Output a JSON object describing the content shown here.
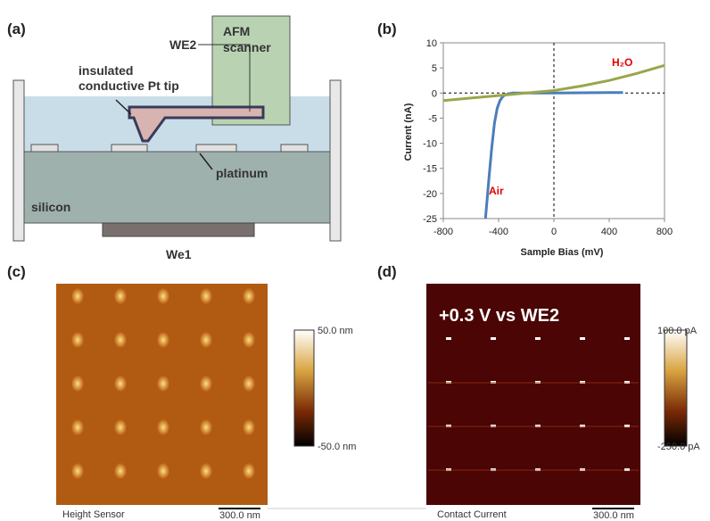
{
  "panel_labels": [
    "(a)",
    "(b)",
    "(c)",
    "(d)"
  ],
  "diagram": {
    "we2": "WE2",
    "scanner": [
      "AFM",
      "scanner"
    ],
    "tip": [
      "insulated",
      "conductive Pt tip"
    ],
    "platinum": "platinum",
    "silicon": "silicon",
    "we1": "We1"
  },
  "chart_data": {
    "type": "line",
    "x_label": "Sample Bias (mV)",
    "y_label": "Current (nA)",
    "xlim": [
      -800,
      800
    ],
    "xticks": [
      -800,
      -400,
      0,
      400,
      800
    ],
    "ylim": [
      -25,
      10
    ],
    "yticks": [
      -25,
      -20,
      -15,
      -10,
      -5,
      0,
      5,
      10
    ],
    "series": [
      {
        "name": "Air",
        "color": "#4a7ebb",
        "x": [
          -495,
          -470,
          -450,
          -430,
          -410,
          -390,
          -370,
          -350,
          -300,
          -200,
          0,
          200,
          400,
          500
        ],
        "values": [
          -25,
          -17,
          -11,
          -6,
          -3,
          -1.5,
          -0.7,
          -0.3,
          0,
          0,
          0,
          0.05,
          0.1,
          0.1
        ]
      },
      {
        "name": "H₂O",
        "color": "#9aa64a",
        "x": [
          -800,
          -600,
          -400,
          -200,
          0,
          200,
          400,
          600,
          800
        ],
        "values": [
          -1.5,
          -1,
          -0.5,
          0,
          0.5,
          1.4,
          2.5,
          3.9,
          5.5
        ]
      }
    ]
  },
  "images": [
    {
      "caption": "Height Sensor",
      "scale_bar": "300.0 nm",
      "colorbar": [
        "50.0 nm",
        "-50.0 nm"
      ]
    },
    {
      "caption": "Contact Current",
      "scale_bar": "300.0 nm",
      "colorbar": [
        "100.0 pA",
        "-250.0 pA"
      ],
      "overlay": "+0.3 V vs WE2"
    }
  ]
}
